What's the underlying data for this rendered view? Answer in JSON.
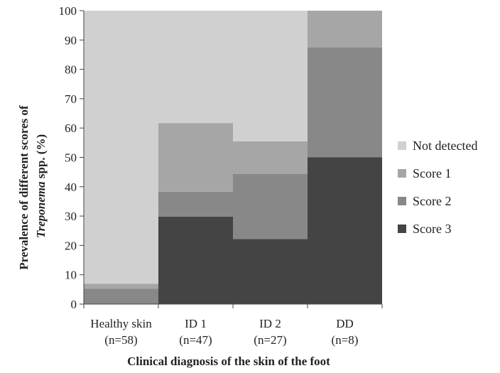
{
  "chart_data": {
    "type": "bar",
    "stacked": true,
    "categories": [
      {
        "name": "Healthy skin",
        "n": "(n=58)"
      },
      {
        "name": "ID 1",
        "n": "(n=47)"
      },
      {
        "name": "ID 2",
        "n": "(n=27)"
      },
      {
        "name": "DD",
        "n": "(n=8)"
      }
    ],
    "series": [
      {
        "name": "Score 3",
        "color": "#444444",
        "values": [
          0,
          29.8,
          22.2,
          50.0
        ]
      },
      {
        "name": "Score 2",
        "color": "#888888",
        "values": [
          5.2,
          8.5,
          22.2,
          37.5
        ]
      },
      {
        "name": "Score 1",
        "color": "#a6a6a6",
        "values": [
          1.7,
          23.4,
          11.1,
          12.5
        ]
      },
      {
        "name": "Not detected",
        "color": "#d0d0d0",
        "values": [
          93.1,
          38.3,
          44.5,
          0
        ]
      }
    ],
    "legend_order": [
      "Not detected",
      "Score 1",
      "Score 2",
      "Score 3"
    ],
    "legend_position": "right",
    "ylim": [
      0,
      100
    ],
    "yticks": [
      0,
      10,
      20,
      30,
      40,
      50,
      60,
      70,
      80,
      90,
      100
    ],
    "ylabel_line1": "Prevalence of different scores of",
    "ylabel_line2_italic": "Treponema",
    "ylabel_line2_rest": " spp. (%)",
    "xlabel": "Clinical diagnosis of the skin of the foot",
    "grid": false
  }
}
